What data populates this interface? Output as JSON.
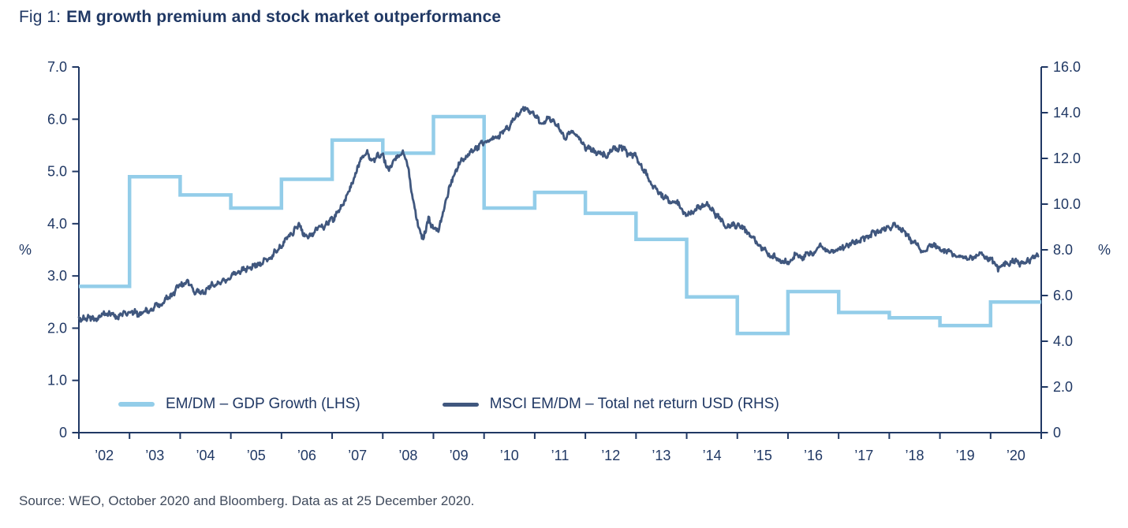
{
  "chart_data": {
    "type": "line",
    "fig_label": "Fig 1:",
    "title": "EM growth premium and stock market outperformance",
    "grid": false,
    "legend_position": "bottom-inside",
    "x_axis": {
      "start_year": 2002,
      "end_year": 2021,
      "year_labels": [
        "’02",
        "’03",
        "’04",
        "’05",
        "’06",
        "’07",
        "’08",
        "’09",
        "’10",
        "’11",
        "’12",
        "’13",
        "’14",
        "’15",
        "’16",
        "’17",
        "’18",
        "’19",
        "’20"
      ]
    },
    "left_axis": {
      "unit": "%",
      "min": 0,
      "max": 7,
      "tick_step": 1,
      "tick_labels": [
        "0",
        "1.0",
        "2.0",
        "3.0",
        "4.0",
        "5.0",
        "6.0",
        "7.0"
      ]
    },
    "right_axis": {
      "unit": "%",
      "min": 0,
      "max": 16,
      "tick_step": 2,
      "tick_labels": [
        "0",
        "2.0",
        "4.0",
        "6.0",
        "8.0",
        "10.0",
        "12.0",
        "14.0",
        "16.0"
      ]
    },
    "series": [
      {
        "name": "EM/DM – GDP Growth (LHS)",
        "type": "step",
        "axis": "left",
        "color": "#93CDE9",
        "stroke_width": 4.5,
        "years": [
          2002,
          2003,
          2004,
          2005,
          2006,
          2007,
          2008,
          2009,
          2010,
          2011,
          2012,
          2013,
          2014,
          2015,
          2016,
          2017,
          2018,
          2019,
          2020
        ],
        "values": [
          2.8,
          4.9,
          4.55,
          4.3,
          4.85,
          5.6,
          5.35,
          6.05,
          4.3,
          4.6,
          4.2,
          3.7,
          2.6,
          1.9,
          2.7,
          2.3,
          2.2,
          2.05,
          2.5
        ]
      },
      {
        "name": "MSCI EM/DM – Total net return USD (RHS)",
        "type": "line",
        "axis": "right",
        "color": "#40577E",
        "stroke_width": 2.8,
        "points": [
          [
            2002.0,
            4.9
          ],
          [
            2002.15,
            5.05
          ],
          [
            2002.3,
            4.95
          ],
          [
            2002.45,
            5.15
          ],
          [
            2002.6,
            5.2
          ],
          [
            2002.75,
            5.05
          ],
          [
            2002.9,
            5.2
          ],
          [
            2003.0,
            5.3
          ],
          [
            2003.2,
            5.2
          ],
          [
            2003.4,
            5.35
          ],
          [
            2003.6,
            5.6
          ],
          [
            2003.8,
            5.95
          ],
          [
            2004.0,
            6.45
          ],
          [
            2004.15,
            6.6
          ],
          [
            2004.3,
            6.2
          ],
          [
            2004.45,
            6.1
          ],
          [
            2004.6,
            6.4
          ],
          [
            2004.8,
            6.6
          ],
          [
            2005.0,
            6.85
          ],
          [
            2005.2,
            7.1
          ],
          [
            2005.4,
            7.25
          ],
          [
            2005.6,
            7.4
          ],
          [
            2005.8,
            7.7
          ],
          [
            2006.0,
            8.2
          ],
          [
            2006.2,
            8.7
          ],
          [
            2006.35,
            9.1
          ],
          [
            2006.5,
            8.5
          ],
          [
            2006.65,
            8.8
          ],
          [
            2006.8,
            9.0
          ],
          [
            2007.0,
            9.3
          ],
          [
            2007.2,
            9.9
          ],
          [
            2007.4,
            10.9
          ],
          [
            2007.55,
            11.9
          ],
          [
            2007.7,
            12.3
          ],
          [
            2007.8,
            11.8
          ],
          [
            2007.9,
            12.2
          ],
          [
            2008.0,
            12.1
          ],
          [
            2008.1,
            11.5
          ],
          [
            2008.25,
            12.0
          ],
          [
            2008.4,
            12.3
          ],
          [
            2008.5,
            11.6
          ],
          [
            2008.6,
            10.2
          ],
          [
            2008.7,
            9.0
          ],
          [
            2008.8,
            8.5
          ],
          [
            2008.9,
            9.3
          ],
          [
            2009.0,
            9.0
          ],
          [
            2009.1,
            8.8
          ],
          [
            2009.25,
            10.2
          ],
          [
            2009.4,
            11.3
          ],
          [
            2009.55,
            11.9
          ],
          [
            2009.7,
            12.2
          ],
          [
            2009.85,
            12.5
          ],
          [
            2010.0,
            12.7
          ],
          [
            2010.2,
            12.9
          ],
          [
            2010.35,
            13.1
          ],
          [
            2010.5,
            13.4
          ],
          [
            2010.65,
            13.9
          ],
          [
            2010.8,
            14.2
          ],
          [
            2010.9,
            14.1
          ],
          [
            2011.0,
            13.9
          ],
          [
            2011.15,
            13.5
          ],
          [
            2011.3,
            13.8
          ],
          [
            2011.45,
            13.4
          ],
          [
            2011.6,
            12.9
          ],
          [
            2011.75,
            13.2
          ],
          [
            2011.9,
            12.8
          ],
          [
            2012.0,
            12.5
          ],
          [
            2012.2,
            12.3
          ],
          [
            2012.4,
            12.1
          ],
          [
            2012.55,
            12.4
          ],
          [
            2012.7,
            12.5
          ],
          [
            2012.85,
            12.2
          ],
          [
            2013.0,
            12.1
          ],
          [
            2013.15,
            11.5
          ],
          [
            2013.3,
            10.9
          ],
          [
            2013.5,
            10.4
          ],
          [
            2013.7,
            10.1
          ],
          [
            2013.85,
            10.0
          ],
          [
            2014.0,
            9.5
          ],
          [
            2014.2,
            9.8
          ],
          [
            2014.4,
            10.0
          ],
          [
            2014.6,
            9.5
          ],
          [
            2014.8,
            9.0
          ],
          [
            2015.0,
            9.1
          ],
          [
            2015.2,
            8.8
          ],
          [
            2015.4,
            8.3
          ],
          [
            2015.6,
            7.8
          ],
          [
            2015.8,
            7.6
          ],
          [
            2016.0,
            7.4
          ],
          [
            2016.15,
            7.8
          ],
          [
            2016.3,
            7.7
          ],
          [
            2016.5,
            7.9
          ],
          [
            2016.65,
            8.2
          ],
          [
            2016.8,
            7.9
          ],
          [
            2017.0,
            8.0
          ],
          [
            2017.2,
            8.2
          ],
          [
            2017.4,
            8.4
          ],
          [
            2017.6,
            8.6
          ],
          [
            2017.8,
            8.8
          ],
          [
            2018.0,
            9.0
          ],
          [
            2018.1,
            9.1
          ],
          [
            2018.25,
            8.9
          ],
          [
            2018.4,
            8.5
          ],
          [
            2018.55,
            8.2
          ],
          [
            2018.7,
            7.9
          ],
          [
            2018.85,
            8.3
          ],
          [
            2019.0,
            8.0
          ],
          [
            2019.2,
            7.9
          ],
          [
            2019.4,
            7.7
          ],
          [
            2019.6,
            7.6
          ],
          [
            2019.8,
            7.8
          ],
          [
            2020.0,
            7.6
          ],
          [
            2020.15,
            7.2
          ],
          [
            2020.3,
            7.4
          ],
          [
            2020.5,
            7.5
          ],
          [
            2020.65,
            7.4
          ],
          [
            2020.8,
            7.6
          ],
          [
            2020.95,
            7.7
          ]
        ]
      }
    ]
  },
  "source_note": "Source: WEO, October 2020 and Bloomberg. Data as at 25 December 2020.",
  "colors": {
    "title": "#203864",
    "axis": "#203864",
    "gdp_series": "#93CDE9",
    "msci_series": "#40577E",
    "source_text": "#3F4A5C"
  }
}
